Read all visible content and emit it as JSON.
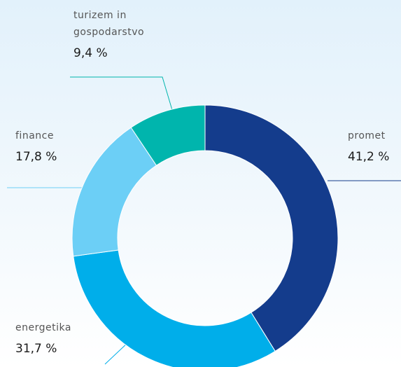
{
  "chart_data": {
    "type": "donut",
    "categories": [
      "promet",
      "energetika",
      "finance",
      "turizem in gospodarstvo"
    ],
    "values": [
      41.2,
      31.7,
      17.8,
      9.4
    ],
    "value_labels": [
      "41,2 %",
      "31,7 %",
      "17,8 %",
      "9,4 %"
    ],
    "colors": [
      "#143c8c",
      "#00aeea",
      "#6ccff6",
      "#00b5ad"
    ]
  }
}
